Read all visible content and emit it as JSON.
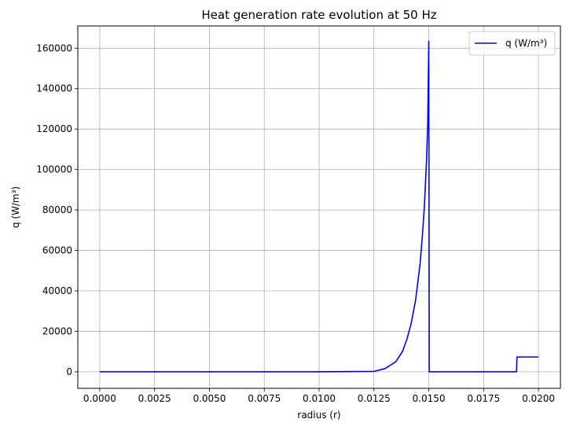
{
  "chart_data": {
    "type": "line",
    "title": "Heat generation rate evolution at 50 Hz",
    "xlabel": "radius (r)",
    "ylabel": "q (W/m³)",
    "xlim": [
      -0.001,
      0.021
    ],
    "ylim": [
      -8200,
      171000
    ],
    "xticks": [
      0.0,
      0.0025,
      0.005,
      0.0075,
      0.01,
      0.0125,
      0.015,
      0.0175,
      0.02
    ],
    "xtick_labels": [
      "0.0000",
      "0.0025",
      "0.0050",
      "0.0075",
      "0.0100",
      "0.0125",
      "0.0150",
      "0.0175",
      "0.0200"
    ],
    "yticks": [
      0,
      20000,
      40000,
      60000,
      80000,
      100000,
      120000,
      140000,
      160000
    ],
    "ytick_labels": [
      "0",
      "20000",
      "40000",
      "60000",
      "80000",
      "100000",
      "120000",
      "140000",
      "160000"
    ],
    "grid": true,
    "legend_position": "top-right",
    "series": [
      {
        "name": "q (W/m³)",
        "color": "#0000ff",
        "x": [
          0.0,
          0.005,
          0.01,
          0.0125,
          0.013,
          0.0135,
          0.0138,
          0.014,
          0.0142,
          0.0144,
          0.0146,
          0.0147,
          0.0148,
          0.0149,
          0.01495,
          0.015,
          0.01502,
          0.0175,
          0.019,
          0.01902,
          0.02
        ],
        "y": [
          0,
          0,
          0,
          200,
          1500,
          5000,
          10000,
          16000,
          24000,
          35500,
          53000,
          66000,
          82000,
          105000,
          122000,
          163500,
          0,
          0,
          0,
          7300,
          7300
        ]
      }
    ]
  }
}
